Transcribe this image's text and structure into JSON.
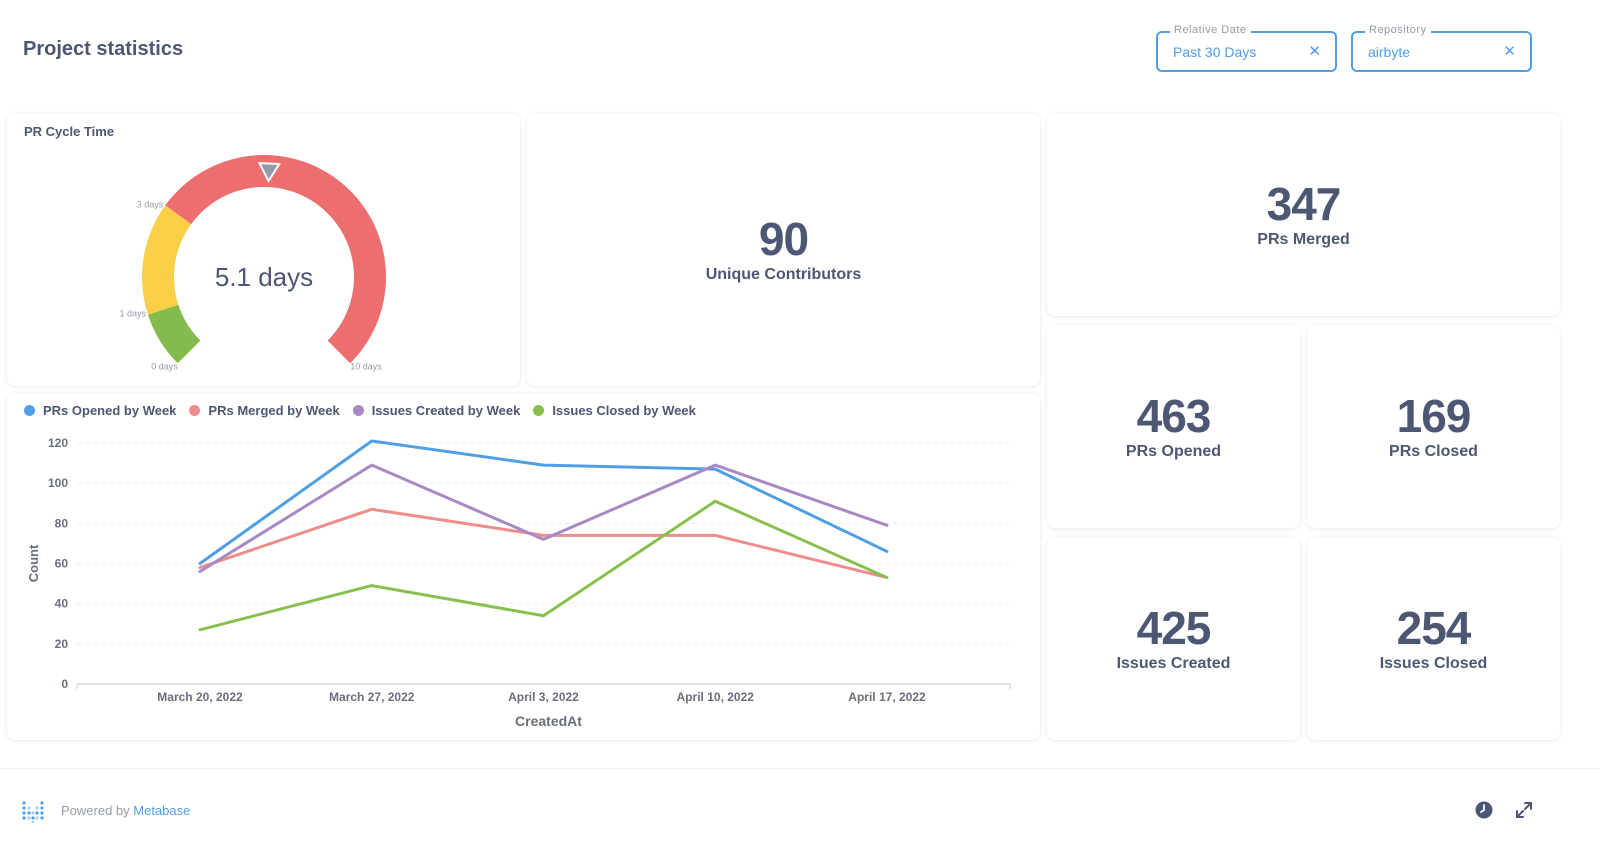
{
  "page_title": "Project statistics",
  "filters": [
    {
      "label": "Relative Date",
      "value": "Past 30 Days",
      "close": "✕"
    },
    {
      "label": "Repository",
      "value": "airbyte",
      "close": "✕"
    }
  ],
  "gauge": {
    "title": "PR Cycle Time",
    "value_label": "5.1 days",
    "value": 5.1,
    "min_label": "0 days",
    "max_label": "10 days",
    "tick_1_label": "1 days",
    "tick_3_label": "3 days",
    "segments": [
      {
        "from": 0,
        "to": 1,
        "color": "#84bb4c"
      },
      {
        "from": 1,
        "to": 3,
        "color": "#f9cf48"
      },
      {
        "from": 3,
        "to": 10,
        "color": "#ed6e6e"
      }
    ]
  },
  "scalars": {
    "unique_contributors": {
      "value": "90",
      "label": "Unique Contributors"
    },
    "prs_merged": {
      "value": "347",
      "label": "PRs Merged"
    },
    "prs_opened": {
      "value": "463",
      "label": "PRs Opened"
    },
    "prs_closed": {
      "value": "169",
      "label": "PRs Closed"
    },
    "issues_created": {
      "value": "425",
      "label": "Issues Created"
    },
    "issues_closed": {
      "value": "254",
      "label": "Issues Closed"
    }
  },
  "chart_data": {
    "type": "line",
    "x": [
      "March 20, 2022",
      "March 27, 2022",
      "April 3, 2022",
      "April 10, 2022",
      "April 17, 2022"
    ],
    "xlabel": "CreatedAt",
    "ylabel": "Count",
    "ylim": [
      0,
      120
    ],
    "yticks": [
      0,
      20,
      40,
      60,
      80,
      100,
      120
    ],
    "grid": true,
    "legend_position": "top-left",
    "series": [
      {
        "name": "PRs Opened by Week",
        "color": "#509ee3",
        "values": [
          60,
          121,
          109,
          107,
          66
        ]
      },
      {
        "name": "PRs Merged by Week",
        "color": "#ef8c8c",
        "values": [
          58,
          87,
          74,
          74,
          53
        ]
      },
      {
        "name": "Issues Created by Week",
        "color": "#a989c5",
        "values": [
          56,
          109,
          72,
          109,
          79
        ]
      },
      {
        "name": "Issues Closed by Week",
        "color": "#88bf4d",
        "values": [
          27,
          49,
          34,
          91,
          53
        ]
      }
    ]
  },
  "footer": {
    "powered_prefix": "Powered by",
    "brand": "Metabase"
  },
  "icons": {
    "clock": "clock-icon",
    "expand": "expand-icon",
    "logo": "metabase-logo-icon"
  }
}
